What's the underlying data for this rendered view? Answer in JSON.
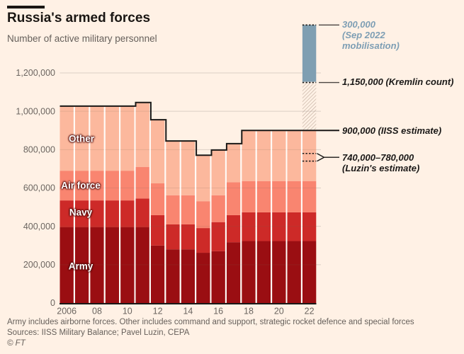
{
  "header": {
    "title": "Russia's armed forces",
    "subtitle": "Number of active military personnel"
  },
  "chart_data": {
    "type": "bar",
    "stacked": true,
    "title": "Russia's armed forces",
    "subtitle": "Number of active military personnel",
    "years": [
      2006,
      2007,
      2008,
      2009,
      2010,
      2011,
      2012,
      2013,
      2014,
      2015,
      2016,
      2017,
      2018,
      2019,
      2020,
      2021,
      2022
    ],
    "x_tick_labels": [
      "2006",
      "08",
      "10",
      "12",
      "14",
      "16",
      "18",
      "20",
      "22"
    ],
    "y_ticks": [
      0,
      200000,
      400000,
      600000,
      800000,
      1000000,
      1200000
    ],
    "y_tick_labels": [
      "0",
      "200,000",
      "400,000",
      "600,000",
      "800,000",
      "1,000,000",
      "1,200,000"
    ],
    "ylim": [
      0,
      1460000
    ],
    "grid": "horizontal",
    "legend_position": "in-bar-labels",
    "series": [
      {
        "name": "Army",
        "color": "#9a0e12",
        "values": [
          395000,
          395000,
          395000,
          395000,
          395000,
          395000,
          300000,
          280000,
          280000,
          262000,
          270000,
          317000,
          323000,
          323000,
          323000,
          323000,
          323000
        ]
      },
      {
        "name": "Navy",
        "color": "#cd2a28",
        "values": [
          140000,
          140000,
          140000,
          140000,
          140000,
          150000,
          158000,
          130000,
          130000,
          129000,
          152000,
          141000,
          150000,
          150000,
          150000,
          150000,
          150000
        ]
      },
      {
        "name": "Air force",
        "color": "#f98570",
        "values": [
          155000,
          155000,
          155000,
          155000,
          155000,
          165000,
          166000,
          152000,
          152000,
          140000,
          140000,
          172000,
          163000,
          163000,
          163000,
          163000,
          163000
        ]
      },
      {
        "name": "Other",
        "color": "#fcb89d",
        "values": [
          337000,
          337000,
          337000,
          337000,
          337000,
          336000,
          332000,
          283000,
          283000,
          240000,
          236000,
          201000,
          264000,
          264000,
          264000,
          264000,
          264000
        ]
      }
    ],
    "totals": [
      1027000,
      1027000,
      1027000,
      1027000,
      1027000,
      1046000,
      956000,
      845000,
      845000,
      771000,
      798000,
      831000,
      900000,
      900000,
      900000,
      900000,
      900000
    ],
    "extras_2022": {
      "kremlin_estimate": {
        "from": 900000,
        "to": 1150000,
        "style": "hatched"
      },
      "mobilisation": {
        "from": 1150000,
        "to": 1450000,
        "amount": 300000,
        "color": "#7f9fb2"
      },
      "luzin_range": [
        740000,
        780000
      ]
    },
    "annotations": {
      "mobilisation": {
        "lines": [
          "300,000",
          "(Sep 2022",
          "mobilisation)"
        ],
        "color": "#7d9eb4",
        "value": 300000
      },
      "kremlin": {
        "label": "1,150,000 (Kremlin count)",
        "value": 1150000
      },
      "iiss": {
        "label": "900,000 (IISS estimate)",
        "value": 900000
      },
      "luzin": {
        "lines": [
          "740,000–780,000",
          "(Luzin's estimate)"
        ],
        "values": [
          740000,
          780000
        ]
      }
    }
  },
  "footer": {
    "note": "Army includes airborne forces. Other includes command and support, strategic rocket defence and special forces",
    "sources": "Sources: IISS Military Balance; Pavel Luzin, CEPA",
    "credit": "© FT"
  },
  "palette": {
    "background": "#fff1e5",
    "text_dark": "#1a1817",
    "text_muted": "#66605b",
    "gridline": "#dbcfc5",
    "hatch_stripe": "#b7a394",
    "outline_black": "#1a1817"
  }
}
